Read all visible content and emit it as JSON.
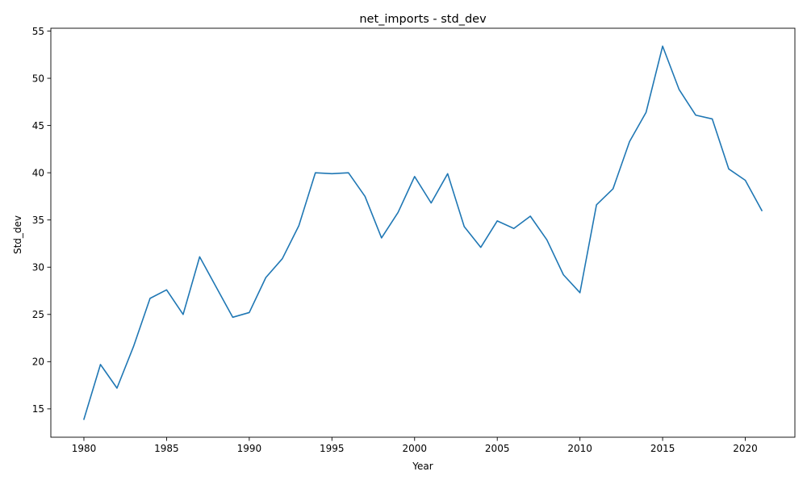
{
  "chart_data": {
    "type": "line",
    "title": "net_imports - std_dev",
    "xlabel": "Year",
    "ylabel": "Std_dev",
    "xlim": [
      1978,
      2023
    ],
    "ylim": [
      12,
      55.3
    ],
    "x_ticks": [
      1980,
      1985,
      1990,
      1995,
      2000,
      2005,
      2010,
      2015,
      2020
    ],
    "y_ticks": [
      15,
      20,
      25,
      30,
      35,
      40,
      45,
      50,
      55
    ],
    "grid": false,
    "legend": "none",
    "line_color": "#1f77b4",
    "series": [
      {
        "x": [
          1980,
          1981,
          1982,
          1983,
          1984,
          1985,
          1986,
          1987,
          1988,
          1989,
          1990,
          1991,
          1992,
          1993,
          1994,
          1995,
          1996,
          1997,
          1998,
          1999,
          2000,
          2001,
          2002,
          2003,
          2004,
          2005,
          2006,
          2007,
          2008,
          2009,
          2010,
          2011,
          2012,
          2013,
          2014,
          2015,
          2016,
          2017,
          2018,
          2019,
          2020,
          2021
        ],
        "values": [
          13.9,
          19.7,
          17.2,
          21.6,
          26.7,
          27.6,
          25.0,
          31.1,
          27.9,
          24.7,
          25.2,
          28.9,
          30.9,
          34.4,
          40.0,
          39.9,
          40.0,
          37.5,
          33.1,
          35.8,
          39.6,
          36.8,
          39.9,
          34.3,
          32.1,
          34.9,
          34.1,
          35.4,
          32.9,
          29.2,
          27.3,
          36.6,
          38.3,
          43.3,
          46.4,
          53.4,
          48.8,
          46.1,
          45.7,
          40.4,
          39.2,
          36.0
        ]
      }
    ]
  }
}
